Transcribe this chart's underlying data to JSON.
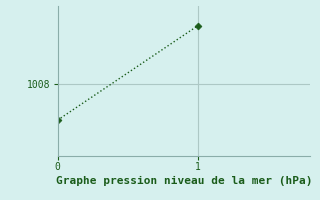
{
  "x": [
    0,
    1
  ],
  "y": [
    1002.5,
    1017.0
  ],
  "line_color": "#1a5c1a",
  "marker": "D",
  "marker_size": 3.5,
  "background_color": "#d6f0ee",
  "grid_color": "#adc8c5",
  "xlabel": "Graphe pression niveau de la mer (hPa)",
  "xlabel_color": "#1a5c1a",
  "xlabel_fontsize": 8,
  "xticks": [
    0,
    1
  ],
  "ytick_val": 1008,
  "ytick_label": "1008",
  "xlim": [
    0,
    1.8
  ],
  "ylim": [
    997,
    1020
  ],
  "spine_color": "#8aada9",
  "tick_color": "#1a5c1a"
}
